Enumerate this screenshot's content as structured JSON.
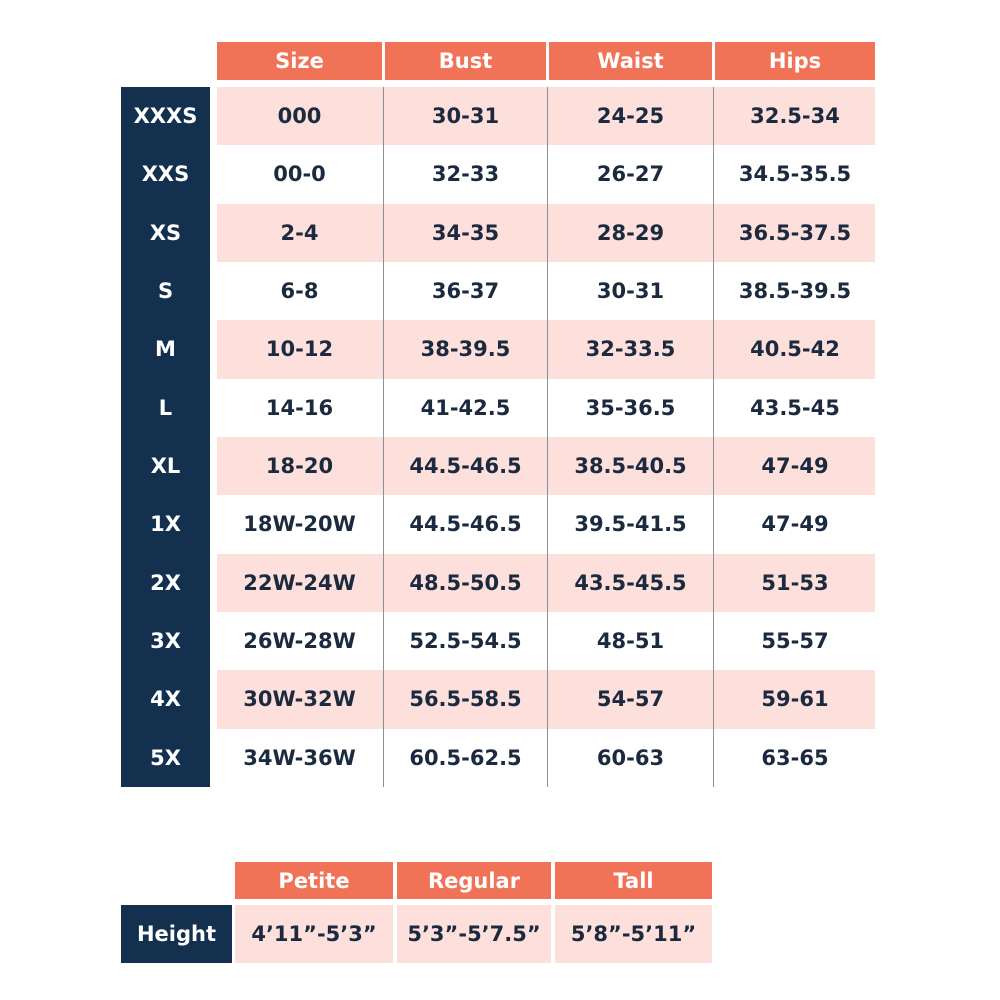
{
  "size_table": {
    "headers": [
      "Size",
      "Bust",
      "Waist",
      "Hips"
    ],
    "row_labels": [
      "XXXS",
      "XXS",
      "XS",
      "S",
      "M",
      "L",
      "XL",
      "1X",
      "2X",
      "3X",
      "4X",
      "5X"
    ],
    "rows": [
      [
        "000",
        "30-31",
        "24-25",
        "32.5-34"
      ],
      [
        "00-0",
        "32-33",
        "26-27",
        "34.5-35.5"
      ],
      [
        "2-4",
        "34-35",
        "28-29",
        "36.5-37.5"
      ],
      [
        "6-8",
        "36-37",
        "30-31",
        "38.5-39.5"
      ],
      [
        "10-12",
        "38-39.5",
        "32-33.5",
        "40.5-42"
      ],
      [
        "14-16",
        "41-42.5",
        "35-36.5",
        "43.5-45"
      ],
      [
        "18-20",
        "44.5-46.5",
        "38.5-40.5",
        "47-49"
      ],
      [
        "18W-20W",
        "44.5-46.5",
        "39.5-41.5",
        "47-49"
      ],
      [
        "22W-24W",
        "48.5-50.5",
        "43.5-45.5",
        "51-53"
      ],
      [
        "26W-28W",
        "52.5-54.5",
        "48-51",
        "55-57"
      ],
      [
        "30W-32W",
        "56.5-58.5",
        "54-57",
        "59-61"
      ],
      [
        "34W-36W",
        "60.5-62.5",
        "60-63",
        "63-65"
      ]
    ]
  },
  "height_table": {
    "headers": [
      "Petite",
      "Regular",
      "Tall"
    ],
    "row_label": "Height",
    "values": [
      "4’11”-5’3”",
      "5’3”-5’7.5”",
      "5’8”-5’11”"
    ]
  }
}
